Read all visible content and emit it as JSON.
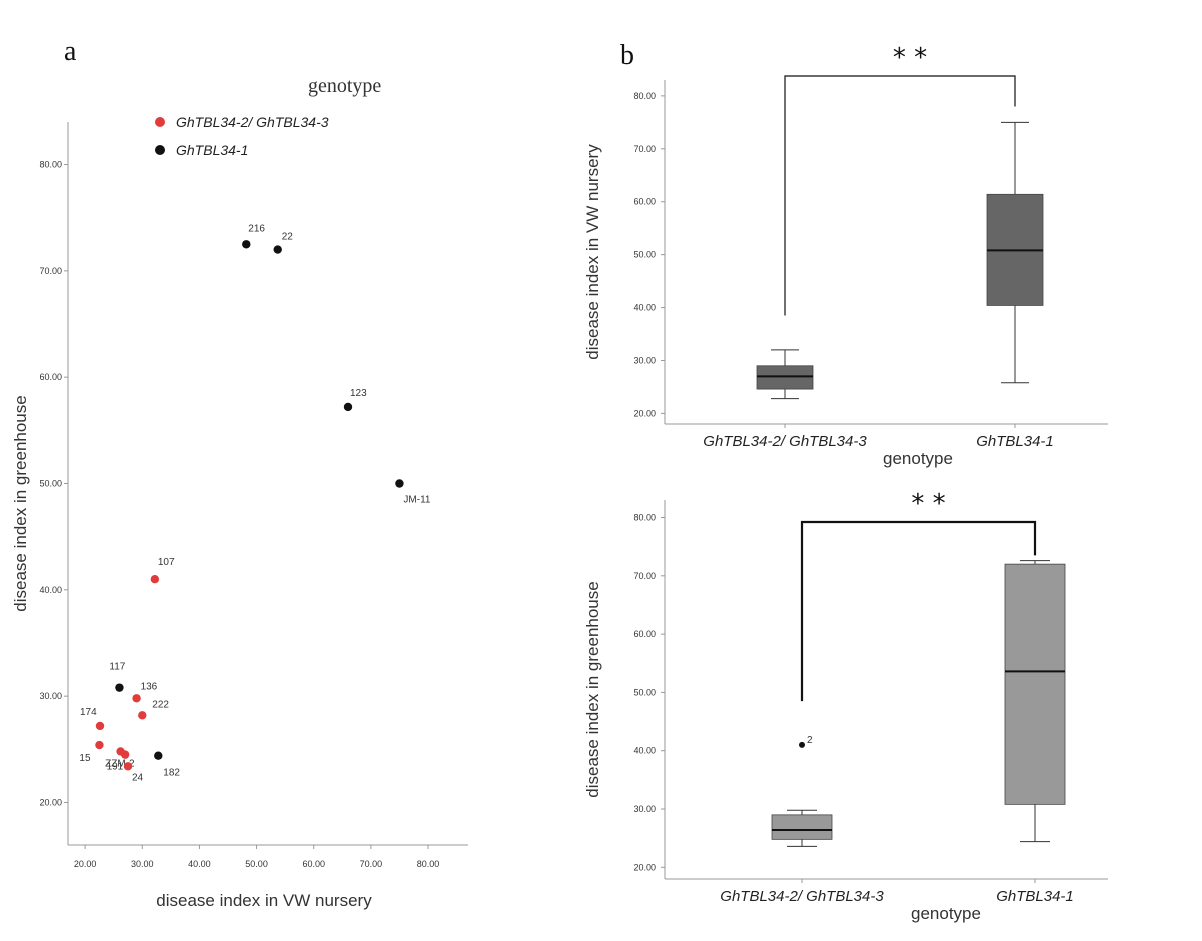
{
  "panels": {
    "a": "a",
    "b": "b"
  },
  "chart_data": [
    {
      "type": "scatter",
      "panel": "a",
      "xlabel": "disease index in VW nursery",
      "ylabel": "disease index in greenhouse",
      "xlim": [
        17,
        87
      ],
      "ylim": [
        16,
        84
      ],
      "xticks": [
        "20.00",
        "30.00",
        "40.00",
        "50.00",
        "60.00",
        "70.00",
        "80.00"
      ],
      "yticks": [
        "20.00",
        "30.00",
        "40.00",
        "50.00",
        "60.00",
        "70.00",
        "80.00"
      ],
      "legend": {
        "title": "genotype",
        "entries": [
          {
            "name": "GhTBL34-2/ GhTBL34-3",
            "color": "#e03c3c"
          },
          {
            "name": "GhTBL34-1",
            "color": "#111111"
          }
        ]
      },
      "series": [
        {
          "name": "GhTBL34-2/ GhTBL34-3",
          "color": "#e03c3c",
          "points": [
            {
              "x": 32.2,
              "y": 41.0,
              "label": "107"
            },
            {
              "x": 29.0,
              "y": 29.8,
              "label": "136"
            },
            {
              "x": 30.0,
              "y": 28.2,
              "label": "222"
            },
            {
              "x": 22.6,
              "y": 27.2,
              "label": "174"
            },
            {
              "x": 22.5,
              "y": 25.4,
              "label": "15"
            },
            {
              "x": 26.2,
              "y": 24.8,
              "label": "191"
            },
            {
              "x": 27.0,
              "y": 24.5,
              "label": "ZZM-2"
            },
            {
              "x": 27.5,
              "y": 23.4,
              "label": "24"
            }
          ]
        },
        {
          "name": "GhTBL34-1",
          "color": "#111111",
          "points": [
            {
              "x": 48.2,
              "y": 72.5,
              "label": "216"
            },
            {
              "x": 53.7,
              "y": 72.0,
              "label": "22"
            },
            {
              "x": 66.0,
              "y": 57.2,
              "label": "123"
            },
            {
              "x": 75.0,
              "y": 50.0,
              "label": "JM-11"
            },
            {
              "x": 26.0,
              "y": 30.8,
              "label": "117"
            },
            {
              "x": 32.8,
              "y": 24.4,
              "label": "182"
            }
          ]
        }
      ]
    },
    {
      "type": "box",
      "panel": "b-top",
      "xlabel": "genotype",
      "ylabel": "disease index in VW nursery",
      "ylim": [
        18,
        83
      ],
      "yticks": [
        "20.00",
        "30.00",
        "40.00",
        "50.00",
        "60.00",
        "70.00",
        "80.00"
      ],
      "categories": [
        "GhTBL34-2/ GhTBL34-3",
        "GhTBL34-1"
      ],
      "color": "#666666",
      "boxes": [
        {
          "min": 22.8,
          "q1": 24.6,
          "median": 27.0,
          "q3": 29.0,
          "max": 32.0
        },
        {
          "min": 25.8,
          "q1": 40.4,
          "median": 50.8,
          "q3": 61.4,
          "max": 75.0
        }
      ],
      "significance": "* *"
    },
    {
      "type": "box",
      "panel": "b-bottom",
      "xlabel": "genotype",
      "ylabel": "disease index in greenhouse",
      "ylim": [
        18,
        83
      ],
      "yticks": [
        "20.00",
        "30.00",
        "40.00",
        "50.00",
        "60.00",
        "70.00",
        "80.00"
      ],
      "categories": [
        "GhTBL34-2/ GhTBL34-3",
        "GhTBL34-1"
      ],
      "color": "#999999",
      "boxes": [
        {
          "min": 23.6,
          "q1": 24.8,
          "median": 26.4,
          "q3": 29.0,
          "max": 29.8,
          "outliers": [
            {
              "value": 41.0,
              "label": "2"
            }
          ]
        },
        {
          "min": 24.4,
          "q1": 30.8,
          "median": 53.6,
          "q3": 72.0,
          "max": 72.6
        }
      ],
      "significance": "* *"
    }
  ]
}
